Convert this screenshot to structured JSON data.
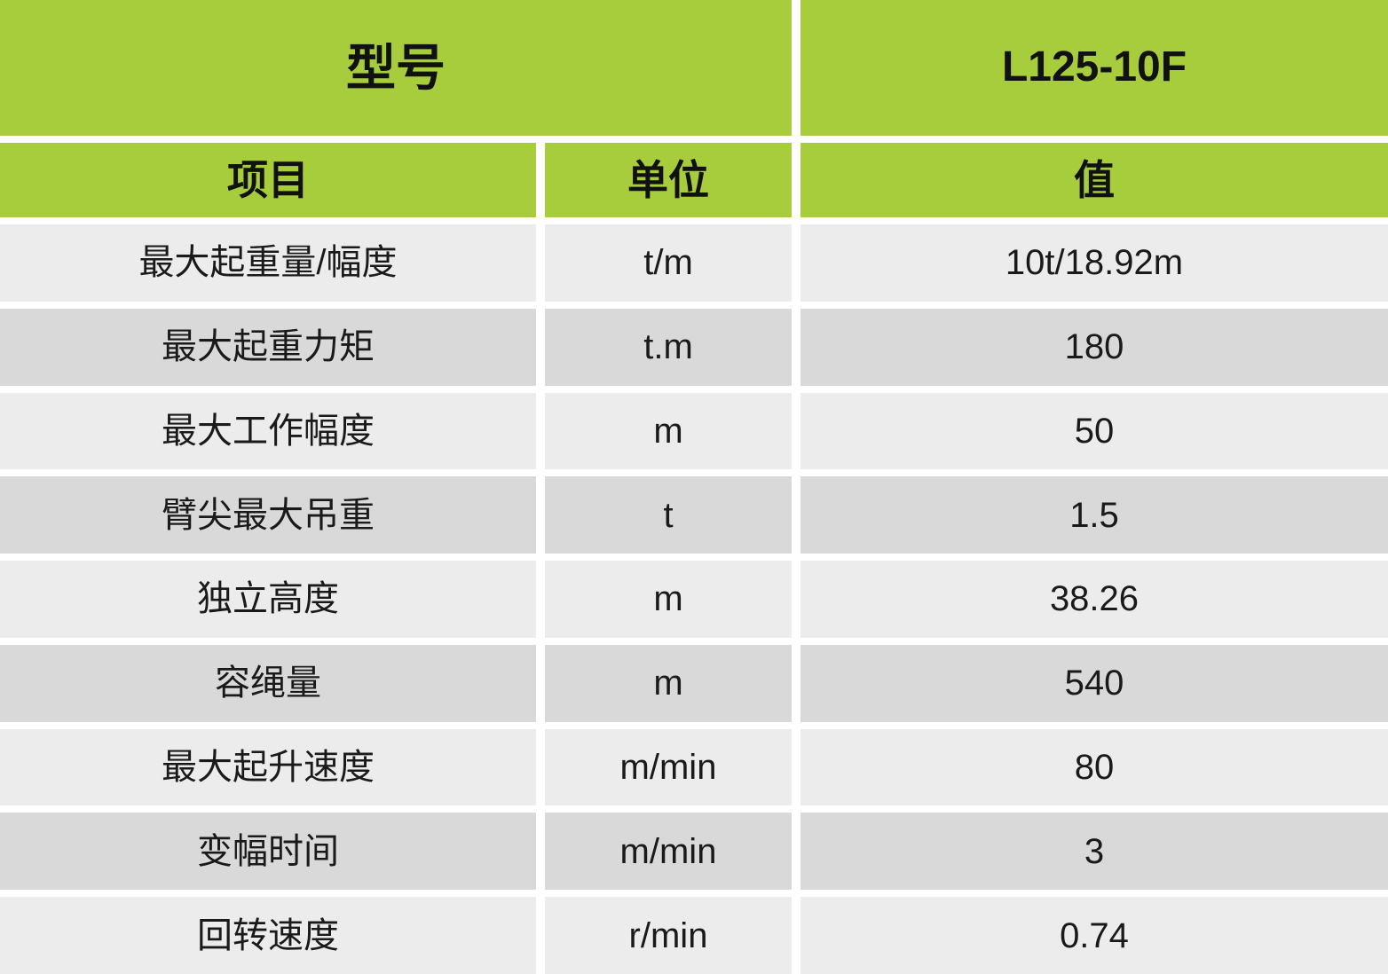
{
  "table": {
    "model_label": "型号",
    "model_value": "L125-10F",
    "columns": {
      "item": "项目",
      "unit": "单位",
      "value": "值"
    },
    "rows": [
      {
        "item": "最大起重量/幅度",
        "unit": "t/m",
        "value": "10t/18.92m"
      },
      {
        "item": "最大起重力矩",
        "unit": "t.m",
        "value": "180"
      },
      {
        "item": "最大工作幅度",
        "unit": "m",
        "value": "50"
      },
      {
        "item": "臂尖最大吊重",
        "unit": "t",
        "value": "1.5"
      },
      {
        "item": "独立高度",
        "unit": "m",
        "value": "38.26"
      },
      {
        "item": "容绳量",
        "unit": "m",
        "value": "540"
      },
      {
        "item": "最大起升速度",
        "unit": "m/min",
        "value": "80"
      },
      {
        "item": "变幅时间",
        "unit": "m/min",
        "value": "3"
      },
      {
        "item": "回转速度",
        "unit": "r/min",
        "value": "0.74"
      }
    ],
    "colors": {
      "accent_green": "#a7cd3c",
      "row_light": "#ececec",
      "row_dark": "#d9d9d9",
      "gap": "#ffffff",
      "text": "#1a1a1a"
    }
  }
}
